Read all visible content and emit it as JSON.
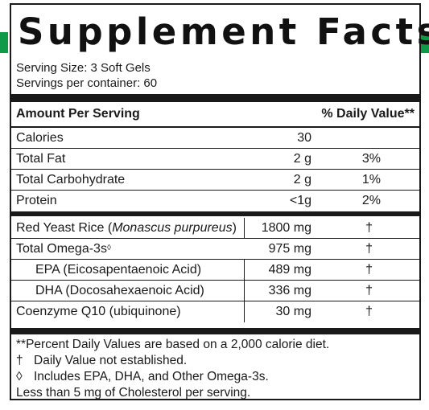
{
  "title": "Supplement Facts",
  "serving_size": "Serving Size: 3 Soft Gels",
  "servings_per_container": "Servings per container: 60",
  "header": {
    "amount": "Amount Per Serving",
    "daily_value": "% Daily Value**"
  },
  "macros": [
    {
      "name": "Calories",
      "amount": "30",
      "dv": ""
    },
    {
      "name": "Total Fat",
      "amount": "2 g",
      "dv": "3%"
    },
    {
      "name": "Total Carbohydrate",
      "amount": "2 g",
      "dv": "1%"
    },
    {
      "name": "Protein",
      "amount": "<1g",
      "dv": "2%"
    }
  ],
  "ingredients": {
    "red_yeast": {
      "name": "Red Yeast Rice (",
      "latin": "Monascus purpureus",
      "close": ")",
      "amount": "1800 mg",
      "dv": "†"
    },
    "omega": {
      "name": "Total Omega-3s",
      "sup": "◊",
      "amount": "975 mg",
      "dv": "†"
    },
    "epa": {
      "name": "EPA (Eicosapentaenoic Acid)",
      "amount": "489 mg",
      "dv": "†"
    },
    "dha": {
      "name": "DHA (Docosahexaenoic Acid)",
      "amount": "336 mg",
      "dv": "†"
    },
    "coq10": {
      "name": "Coenzyme Q10 (ubiquinone)",
      "amount": "30 mg",
      "dv": "†"
    }
  },
  "footnotes": {
    "f1_sym": "**",
    "f1_text": "Percent Daily Values are based on a 2,000 calorie diet.",
    "f2_sym": "†",
    "f2_text": "Daily Value not established.",
    "f3_sym": "◊",
    "f3_text": "Includes EPA, DHA, and Other Omega-3s.",
    "f4_text": "Less than 5 mg of Cholesterol per serving."
  }
}
